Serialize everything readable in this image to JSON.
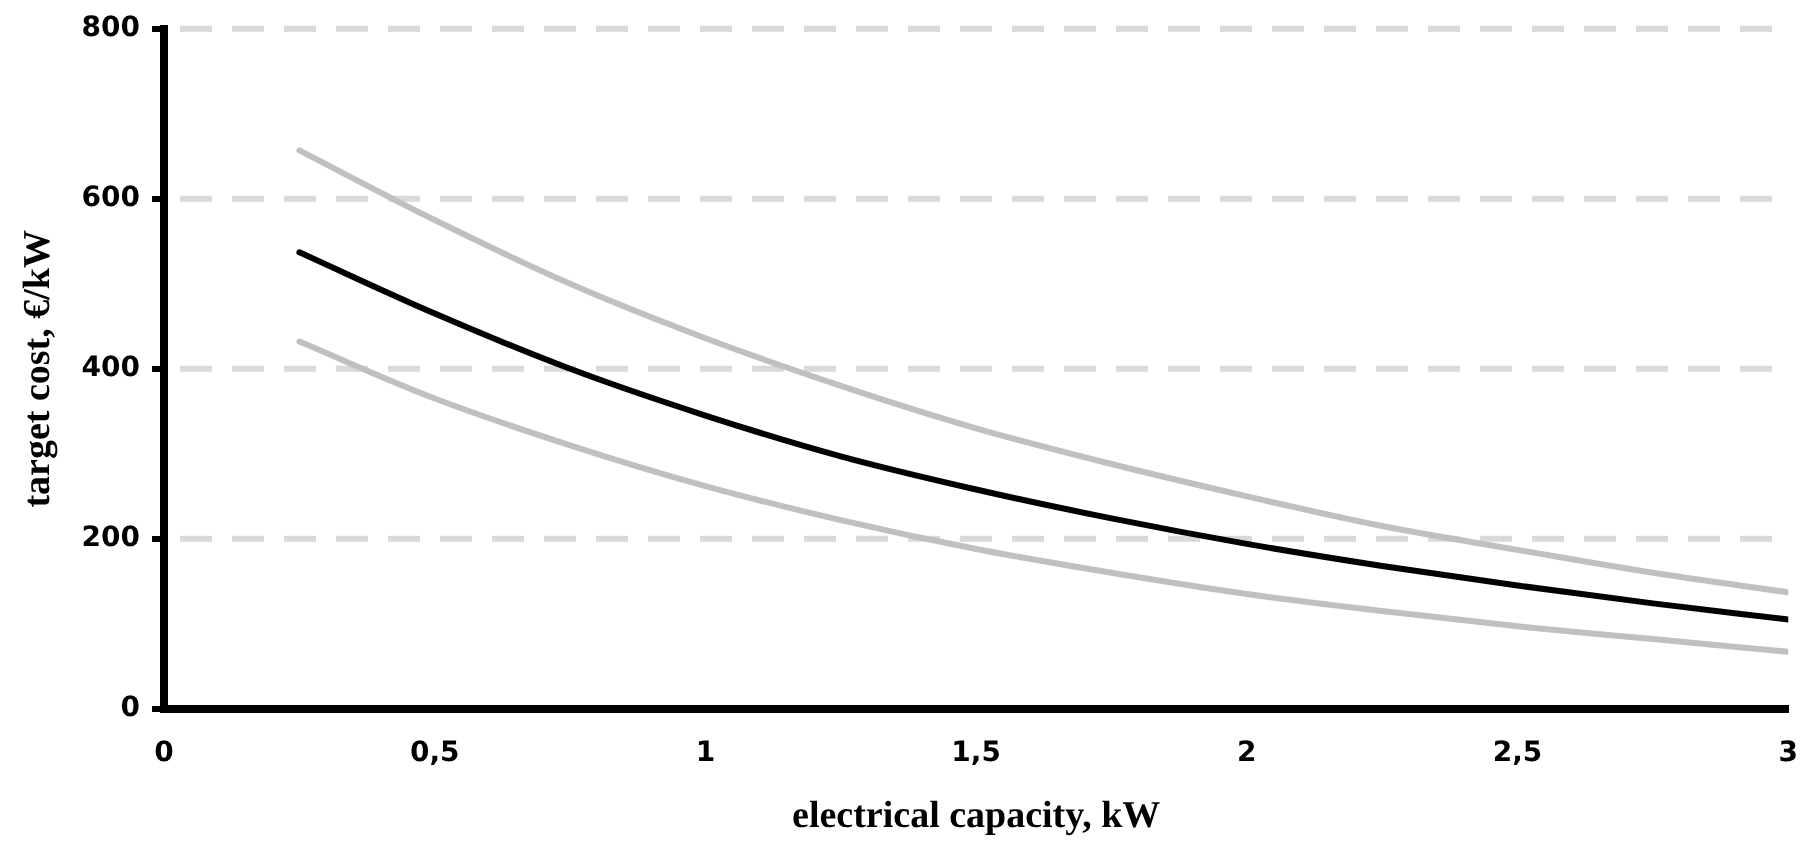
{
  "chart_data": {
    "type": "line",
    "xlabel": "electrical capacity, kW",
    "ylabel": "target cost, €/kW",
    "x": [
      0.25,
      0.5,
      0.75,
      1,
      1.25,
      1.5,
      1.75,
      2,
      2.25,
      2.5,
      2.75,
      3
    ],
    "series": [
      {
        "color": "#c0c0c0",
        "values": [
          657,
          575,
          500,
          436,
          380,
          330,
          288,
          250,
          215,
          187,
          160,
          137
        ]
      },
      {
        "color": "#000000",
        "values": [
          537,
          465,
          400,
          345,
          297,
          258,
          224,
          194,
          168,
          145,
          124,
          105
        ]
      },
      {
        "color": "#c0c0c0",
        "values": [
          432,
          365,
          310,
          262,
          222,
          188,
          160,
          135,
          115,
          97,
          82,
          67
        ]
      }
    ],
    "xlim": [
      0,
      3
    ],
    "xticks": [
      0,
      {
        "value": 0.5,
        "label": "0,5"
      },
      1,
      {
        "value": 1.5,
        "label": "1,5"
      },
      2,
      {
        "value": 2.5,
        "label": "2,5"
      },
      3
    ],
    "ylim": [
      0,
      800
    ],
    "yticks": [
      0,
      200,
      400,
      600,
      800
    ],
    "grid": "y",
    "line_style": "solid",
    "marker": "none",
    "legend": false
  }
}
